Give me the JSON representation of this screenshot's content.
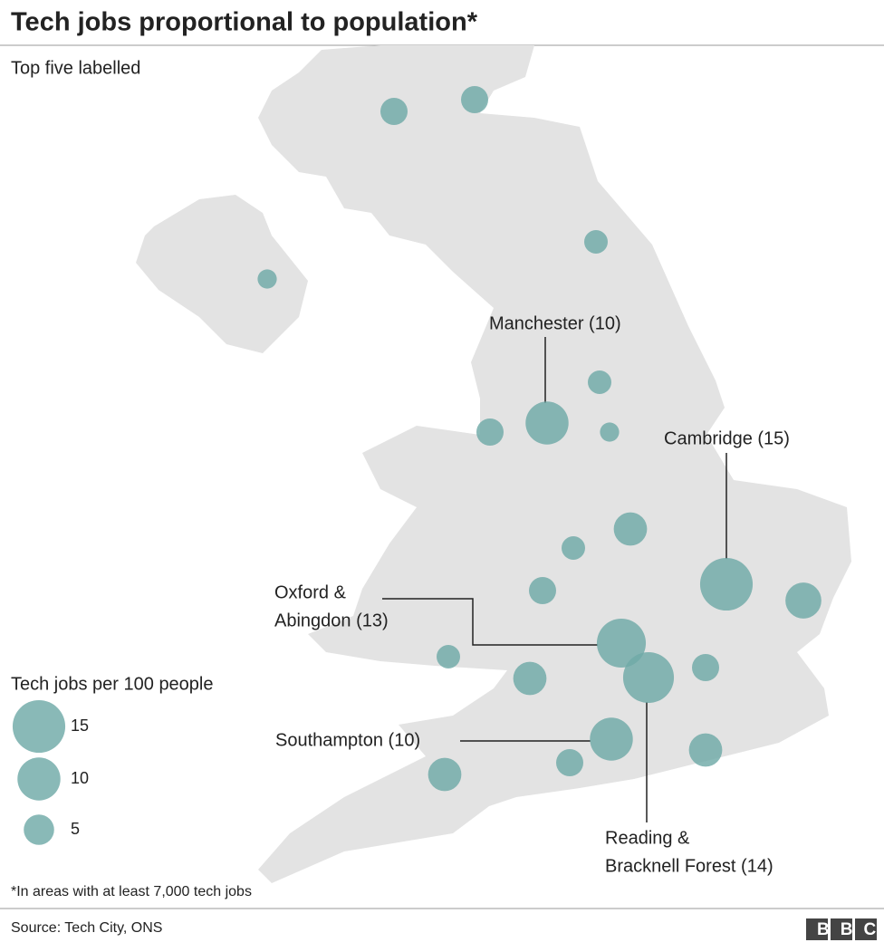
{
  "header": {
    "title": "Tech jobs proportional to population*",
    "subtitle": "Top five labelled"
  },
  "map": {
    "bubbles": [
      {
        "value": 4
      },
      {
        "value": 4
      },
      {
        "value": 3
      },
      {
        "value": 2
      },
      {
        "value": 3
      },
      {
        "value": 10,
        "label": [
          "Manchester (10)"
        ]
      },
      {
        "value": 4
      },
      {
        "value": 2
      },
      {
        "value": 6
      },
      {
        "value": 3
      },
      {
        "value": 15,
        "label": [
          "Cambridge (15)"
        ]
      },
      {
        "value": 4
      },
      {
        "value": 7
      },
      {
        "value": 13,
        "label": [
          "Oxford &",
          "Abingdon (13)"
        ]
      },
      {
        "value": 14,
        "label": [
          "Reading &",
          "Bracknell Forest (14)"
        ]
      },
      {
        "value": 3
      },
      {
        "value": 4
      },
      {
        "value": 6
      },
      {
        "value": 10,
        "label": [
          "Southampton (10)"
        ]
      },
      {
        "value": 6
      },
      {
        "value": 6
      },
      {
        "value": 4
      }
    ]
  },
  "legend": {
    "title": "Tech jobs per 100 people",
    "values": [
      15,
      10,
      5
    ]
  },
  "footer": {
    "note": "*In areas with at least 7,000 tech jobs",
    "source": "Source: Tech City, ONS",
    "logo": "BBC"
  }
}
